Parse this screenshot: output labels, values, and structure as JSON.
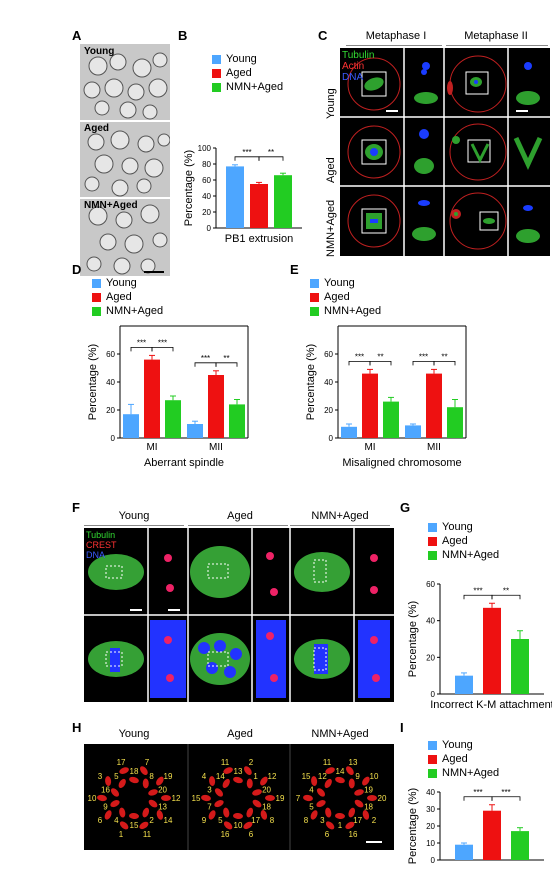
{
  "panel_letters": {
    "A": "A",
    "B": "B",
    "C": "C",
    "D": "D",
    "E": "E",
    "F": "F",
    "G": "G",
    "H": "H",
    "I": "I"
  },
  "groups": {
    "young": "Young",
    "aged": "Aged",
    "nmn": "NMN+Aged"
  },
  "colors": {
    "young": "#4da6ff",
    "aged": "#ee1111",
    "nmn": "#22cc22"
  },
  "panel_c": {
    "col1": "Metaphase I",
    "col2": "Metaphase II",
    "stain_tubulin": "Tubulin",
    "stain_actin": "Actin",
    "stain_dna": "DNA"
  },
  "panel_f": {
    "stain_tubulin": "Tubulin",
    "stain_crest": "CREST",
    "stain_dna": "DNA"
  },
  "chart_data": [
    {
      "panel": "B",
      "type": "bar",
      "categories": [
        "PB1 extrusion"
      ],
      "xlabel": "PB1 extrusion",
      "ylabel": "Percentage (%)",
      "ylim": [
        0,
        100
      ],
      "yticks": [
        0,
        20,
        40,
        60,
        80,
        100
      ],
      "series": [
        {
          "name": "Young",
          "values": [
            77
          ]
        },
        {
          "name": "Aged",
          "values": [
            55
          ]
        },
        {
          "name": "NMN+Aged",
          "values": [
            66
          ]
        }
      ],
      "errors": [
        2,
        2,
        2.5
      ],
      "significance": [
        "***",
        "**"
      ]
    },
    {
      "panel": "D",
      "type": "bar",
      "categories": [
        "MI",
        "MII"
      ],
      "xlabel": "Aberrant spindle",
      "ylabel": "Percentage (%)",
      "ylim": [
        0,
        80
      ],
      "yticks": [
        0,
        20,
        40,
        60
      ],
      "series": [
        {
          "name": "Young",
          "values": [
            17,
            10
          ]
        },
        {
          "name": "Aged",
          "values": [
            56,
            45
          ]
        },
        {
          "name": "NMN+Aged",
          "values": [
            27,
            24
          ]
        }
      ],
      "errors": [
        [
          7,
          2
        ],
        [
          3,
          3
        ],
        [
          3,
          3.5
        ]
      ],
      "significance": [
        "***",
        "***",
        "***",
        "**"
      ]
    },
    {
      "panel": "E",
      "type": "bar",
      "categories": [
        "MI",
        "MII"
      ],
      "xlabel": "Misaligned chromosome",
      "ylabel": "Percentage (%)",
      "ylim": [
        0,
        80
      ],
      "yticks": [
        0,
        20,
        40,
        60
      ],
      "series": [
        {
          "name": "Young",
          "values": [
            8,
            9
          ]
        },
        {
          "name": "Aged",
          "values": [
            46,
            46
          ]
        },
        {
          "name": "NMN+Aged",
          "values": [
            26,
            22
          ]
        }
      ],
      "errors": [
        [
          2,
          1
        ],
        [
          3,
          3
        ],
        [
          3,
          5.5
        ]
      ],
      "significance": [
        "***",
        "**",
        "***",
        "**"
      ]
    },
    {
      "panel": "G",
      "type": "bar",
      "categories": [
        "Incorrect K-M attachment"
      ],
      "xlabel": "Incorrect K-M attachment",
      "ylabel": "Percentage (%)",
      "ylim": [
        0,
        60
      ],
      "yticks": [
        0,
        20,
        40,
        60
      ],
      "series": [
        {
          "name": "Young",
          "values": [
            10
          ]
        },
        {
          "name": "Aged",
          "values": [
            47
          ]
        },
        {
          "name": "NMN+Aged",
          "values": [
            30
          ]
        }
      ],
      "errors": [
        1.5,
        2.5,
        4.5
      ],
      "significance": [
        "***",
        "**"
      ]
    },
    {
      "panel": "I",
      "type": "bar",
      "categories": [
        ""
      ],
      "xlabel": "",
      "ylabel": "Percentage (%)",
      "ylim": [
        0,
        40
      ],
      "yticks": [
        0,
        10,
        20,
        30,
        40
      ],
      "series": [
        {
          "name": "Young",
          "values": [
            9
          ]
        },
        {
          "name": "Aged",
          "values": [
            29
          ]
        },
        {
          "name": "NMN+Aged",
          "values": [
            17
          ]
        }
      ],
      "errors": [
        1,
        3.5,
        2
      ],
      "significance": [
        "***",
        "***"
      ]
    }
  ],
  "panel_h": {
    "young_nums": [
      "12",
      "13",
      "14",
      "2",
      "11",
      "15",
      "1",
      "4",
      "6",
      "9",
      "10",
      "16",
      "3",
      "5",
      "17",
      "18",
      "7",
      "8",
      "19",
      "20"
    ],
    "aged_nums": [
      "19",
      "18",
      "8",
      "17",
      "6",
      "10",
      "16",
      "5",
      "9",
      "7",
      "15",
      "3",
      "4",
      "14",
      "11",
      "13",
      "2",
      "1",
      "12",
      "20"
    ],
    "nmn_nums": [
      "20",
      "18",
      "2",
      "17",
      "16",
      "1",
      "6",
      "3",
      "8",
      "5",
      "7",
      "4",
      "15",
      "12",
      "11",
      "14",
      "13",
      "9",
      "10",
      "19"
    ]
  }
}
